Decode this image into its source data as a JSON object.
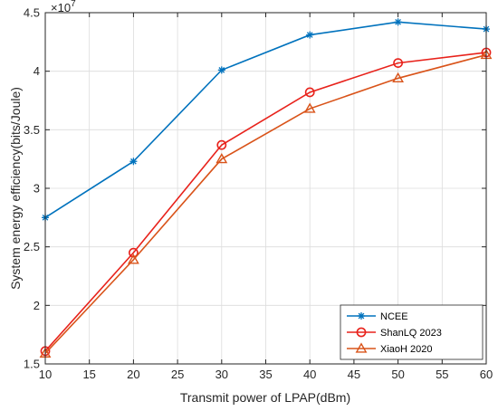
{
  "chart_data": {
    "type": "line",
    "xlabel": "Transmit power of LPAP(dBm)",
    "ylabel": "System energy efficiency(bits/Joule)",
    "y_multiplier": "×10",
    "y_multiplier_exp": "7",
    "xlim": [
      10,
      60
    ],
    "ylim": [
      1.5,
      4.5
    ],
    "x_ticks": [
      10,
      15,
      20,
      25,
      30,
      35,
      40,
      45,
      50,
      55,
      60
    ],
    "y_ticks": [
      1.5,
      2,
      2.5,
      3,
      3.5,
      4,
      4.5
    ],
    "x_tick_labels": [
      "10",
      "15",
      "20",
      "25",
      "30",
      "35",
      "40",
      "45",
      "50",
      "55",
      "60"
    ],
    "y_tick_labels": [
      "1.5",
      "2",
      "2.5",
      "3",
      "3.5",
      "4",
      "4.5"
    ],
    "grid": true,
    "legend_position": "bottom-right",
    "x": [
      10,
      20,
      30,
      40,
      50,
      60
    ],
    "series": [
      {
        "name": "NCEE",
        "values": [
          2.75,
          3.23,
          4.01,
          4.31,
          4.42,
          4.36
        ],
        "color": "#0072BD",
        "marker": "asterisk"
      },
      {
        "name": "ShanLQ 2023",
        "values": [
          1.61,
          2.45,
          3.37,
          3.82,
          4.07,
          4.16
        ],
        "color": "#E8221B",
        "marker": "circle"
      },
      {
        "name": "XiaoH 2020",
        "values": [
          1.59,
          2.39,
          3.25,
          3.68,
          3.94,
          4.14
        ],
        "color": "#D95319",
        "marker": "triangle"
      }
    ]
  }
}
